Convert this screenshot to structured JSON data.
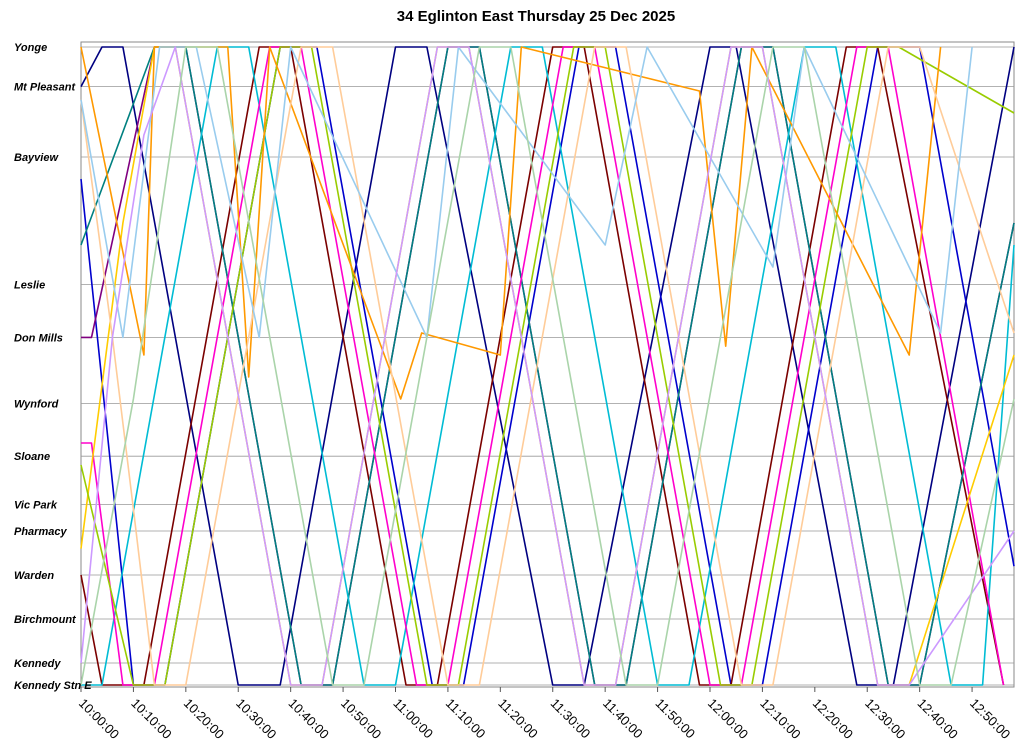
{
  "chart_data": {
    "type": "line",
    "title": "34 Eglinton East Thursday 25 Dec 2025",
    "xlabel": "",
    "ylabel": "",
    "x_ticks": [
      "10:00:00",
      "10:10:00",
      "10:20:00",
      "10:30:00",
      "10:40:00",
      "10:50:00",
      "11:00:00",
      "11:10:00",
      "11:20:00",
      "11:30:00",
      "11:40:00",
      "11:50:00",
      "12:00:00",
      "12:10:00",
      "12:20:00",
      "12:30:00",
      "12:40:00",
      "12:50:00"
    ],
    "xlim": [
      "10:00:00",
      "12:58:00"
    ],
    "stops": [
      {
        "name": "Yonge",
        "pos": 0
      },
      {
        "name": "Mt Pleasant",
        "pos": 0.9
      },
      {
        "name": "Bayview",
        "pos": 2.5
      },
      {
        "name": "Leslie",
        "pos": 5.4
      },
      {
        "name": "Don Mills",
        "pos": 6.6
      },
      {
        "name": "Wynford",
        "pos": 8.1
      },
      {
        "name": "Sloane",
        "pos": 9.3
      },
      {
        "name": "Vic Park",
        "pos": 10.4
      },
      {
        "name": "Pharmacy",
        "pos": 11.0
      },
      {
        "name": "Warden",
        "pos": 12.0
      },
      {
        "name": "Birchmount",
        "pos": 13.0
      },
      {
        "name": "Kennedy",
        "pos": 14.0
      },
      {
        "name": "Kennedy Stn E",
        "pos": 14.5
      }
    ],
    "grid": true,
    "legend": "none",
    "series": [
      {
        "color": "#000080",
        "points": [
          [
            "10:00",
            0.9
          ],
          [
            "10:04",
            0
          ],
          [
            "10:08",
            0
          ],
          [
            "10:30",
            14.5
          ],
          [
            "10:38",
            14.5
          ],
          [
            "11:00",
            0
          ],
          [
            "11:06",
            0
          ],
          [
            "11:30",
            14.5
          ],
          [
            "11:36",
            14.5
          ],
          [
            "12:00",
            0
          ],
          [
            "12:05",
            0
          ],
          [
            "12:28",
            14.5
          ],
          [
            "12:35",
            14.5
          ],
          [
            "12:58",
            0
          ]
        ]
      },
      {
        "color": "#0000cd",
        "points": [
          [
            "10:00",
            3.0
          ],
          [
            "10:10",
            14.5
          ],
          [
            "10:16",
            14.5
          ],
          [
            "10:38",
            0
          ],
          [
            "10:45",
            0
          ],
          [
            "11:07",
            14.5
          ],
          [
            "11:13",
            14.5
          ],
          [
            "11:35",
            0
          ],
          [
            "11:42",
            0
          ],
          [
            "12:04",
            14.5
          ],
          [
            "12:10",
            14.5
          ],
          [
            "12:32",
            0
          ],
          [
            "12:40",
            0
          ],
          [
            "12:58",
            11.8
          ]
        ]
      },
      {
        "color": "#7b0000",
        "points": [
          [
            "10:00",
            12.0
          ],
          [
            "10:04",
            14.5
          ],
          [
            "10:12",
            14.5
          ],
          [
            "10:34",
            0
          ],
          [
            "10:40",
            0
          ],
          [
            "11:02",
            14.5
          ],
          [
            "11:08",
            14.5
          ],
          [
            "11:30",
            0
          ],
          [
            "11:36",
            0
          ],
          [
            "11:58",
            14.5
          ],
          [
            "12:04",
            14.5
          ],
          [
            "12:26",
            0
          ],
          [
            "12:32",
            0
          ],
          [
            "12:56",
            14.5
          ]
        ]
      },
      {
        "color": "#800080",
        "points": [
          [
            "10:00",
            6.6
          ],
          [
            "10:02",
            6.6
          ],
          [
            "10:14",
            0
          ],
          [
            "10:20",
            0
          ],
          [
            "10:42",
            14.5
          ],
          [
            "10:48",
            14.5
          ],
          [
            "11:10",
            0
          ],
          [
            "11:16",
            0
          ],
          [
            "11:38",
            14.5
          ],
          [
            "11:44",
            14.5
          ],
          [
            "12:06",
            0
          ],
          [
            "12:12",
            0
          ],
          [
            "12:34",
            14.5
          ],
          [
            "12:40",
            14.5
          ],
          [
            "12:58",
            4.0
          ]
        ]
      },
      {
        "color": "#008080",
        "points": [
          [
            "10:00",
            4.5
          ],
          [
            "10:14",
            0
          ],
          [
            "10:20",
            0
          ],
          [
            "10:42",
            14.5
          ],
          [
            "10:48",
            14.5
          ],
          [
            "11:10",
            0
          ],
          [
            "11:16",
            0
          ],
          [
            "11:38",
            14.5
          ],
          [
            "11:44",
            14.5
          ],
          [
            "12:06",
            0
          ],
          [
            "12:12",
            0
          ],
          [
            "12:34",
            14.5
          ],
          [
            "12:40",
            14.5
          ],
          [
            "12:58",
            4.0
          ]
        ]
      },
      {
        "color": "#00bcd4",
        "points": [
          [
            "10:00",
            14.5
          ],
          [
            "10:04",
            14.5
          ],
          [
            "10:26",
            0
          ],
          [
            "10:32",
            0
          ],
          [
            "10:54",
            14.5
          ],
          [
            "11:00",
            14.5
          ],
          [
            "11:22",
            0
          ],
          [
            "11:28",
            0
          ],
          [
            "11:50",
            14.5
          ],
          [
            "11:56",
            14.5
          ],
          [
            "12:18",
            0
          ],
          [
            "12:24",
            0
          ],
          [
            "12:46",
            14.5
          ],
          [
            "12:52",
            14.5
          ],
          [
            "12:58",
            4.5
          ]
        ]
      },
      {
        "color": "#ff00cc",
        "points": [
          [
            "10:00",
            9.0
          ],
          [
            "10:02",
            9.0
          ],
          [
            "10:08",
            14.5
          ],
          [
            "10:14",
            14.5
          ],
          [
            "10:36",
            0
          ],
          [
            "10:42",
            0
          ],
          [
            "11:04",
            14.5
          ],
          [
            "11:10",
            14.5
          ],
          [
            "11:32",
            0
          ],
          [
            "11:38",
            0
          ],
          [
            "12:00",
            14.5
          ],
          [
            "12:06",
            14.5
          ],
          [
            "12:28",
            0
          ],
          [
            "12:34",
            0
          ],
          [
            "12:56",
            14.5
          ]
        ]
      },
      {
        "color": "#ffcc00",
        "points": [
          [
            "10:00",
            11.4
          ],
          [
            "10:08",
            4.0
          ],
          [
            "10:14",
            0
          ],
          [
            "10:18",
            0
          ],
          [
            "10:40",
            14.5
          ],
          [
            "10:46",
            14.5
          ],
          [
            "11:08",
            0
          ],
          [
            "11:14",
            0
          ],
          [
            "11:36",
            14.5
          ],
          [
            "11:42",
            14.5
          ],
          [
            "12:04",
            0
          ],
          [
            "12:10",
            0
          ],
          [
            "12:32",
            14.5
          ],
          [
            "12:38",
            14.5
          ],
          [
            "12:58",
            7.0
          ]
        ]
      },
      {
        "color": "#99cc00",
        "points": [
          [
            "10:00",
            9.5
          ],
          [
            "10:10",
            14.5
          ],
          [
            "10:16",
            14.5
          ],
          [
            "10:38",
            0
          ],
          [
            "10:44",
            0
          ],
          [
            "11:06",
            14.5
          ],
          [
            "11:12",
            14.5
          ],
          [
            "11:34",
            0
          ],
          [
            "11:40",
            0
          ],
          [
            "12:02",
            14.5
          ],
          [
            "12:08",
            14.5
          ],
          [
            "12:30",
            0
          ],
          [
            "12:36",
            0
          ],
          [
            "12:58",
            1.5
          ]
        ]
      },
      {
        "color": "#ff9900",
        "points": [
          [
            "10:00",
            0
          ],
          [
            "10:12",
            7.0
          ],
          [
            "10:14",
            0
          ],
          [
            "10:28",
            0
          ],
          [
            "10:32",
            7.5
          ],
          [
            "10:36",
            0
          ],
          [
            "11:01",
            8.0
          ],
          [
            "11:05",
            6.5
          ],
          [
            "11:20",
            7.0
          ],
          [
            "11:24",
            0
          ],
          [
            "11:58",
            1.0
          ],
          [
            "12:03",
            6.8
          ],
          [
            "12:08",
            0
          ],
          [
            "12:38",
            7.0
          ],
          [
            "12:44",
            0
          ]
        ]
      },
      {
        "color": "#ffcc99",
        "points": [
          [
            "10:00",
            1.2
          ],
          [
            "10:06",
            6.6
          ],
          [
            "10:10",
            10.5
          ],
          [
            "10:14",
            14.5
          ],
          [
            "10:20",
            14.5
          ],
          [
            "10:42",
            0
          ],
          [
            "10:48",
            0
          ],
          [
            "11:10",
            14.5
          ],
          [
            "11:16",
            14.5
          ],
          [
            "11:38",
            0
          ],
          [
            "11:44",
            0
          ],
          [
            "12:06",
            14.5
          ],
          [
            "12:12",
            14.5
          ],
          [
            "12:34",
            0
          ],
          [
            "12:40",
            0
          ],
          [
            "12:58",
            6.5
          ]
        ]
      },
      {
        "color": "#99ccee",
        "points": [
          [
            "10:00",
            1.2
          ],
          [
            "10:08",
            6.6
          ],
          [
            "10:15",
            0
          ],
          [
            "10:22",
            0
          ],
          [
            "10:34",
            6.6
          ],
          [
            "10:40",
            0
          ],
          [
            "11:06",
            6.6
          ],
          [
            "11:12",
            0
          ],
          [
            "11:40",
            4.5
          ],
          [
            "11:48",
            0
          ],
          [
            "12:12",
            5.0
          ],
          [
            "12:18",
            0
          ],
          [
            "12:44",
            6.5
          ],
          [
            "12:50",
            0
          ]
        ]
      },
      {
        "color": "#cc99ff",
        "points": [
          [
            "10:00",
            14.0
          ],
          [
            "10:06",
            6.6
          ],
          [
            "10:12",
            2.0
          ],
          [
            "10:18",
            0
          ],
          [
            "10:40",
            14.5
          ],
          [
            "10:46",
            14.5
          ],
          [
            "11:08",
            0
          ],
          [
            "11:14",
            0
          ],
          [
            "11:36",
            14.5
          ],
          [
            "11:42",
            14.5
          ],
          [
            "12:04",
            0
          ],
          [
            "12:10",
            0
          ],
          [
            "12:32",
            14.5
          ],
          [
            "12:38",
            14.5
          ],
          [
            "12:58",
            11.0
          ]
        ]
      },
      {
        "color": "#aad4aa",
        "points": [
          [
            "10:00",
            14.5
          ],
          [
            "10:10",
            8.0
          ],
          [
            "10:20",
            0
          ],
          [
            "10:26",
            0
          ],
          [
            "10:48",
            14.5
          ],
          [
            "10:54",
            14.5
          ],
          [
            "11:16",
            0
          ],
          [
            "11:22",
            0
          ],
          [
            "11:44",
            14.5
          ],
          [
            "11:50",
            14.5
          ],
          [
            "12:12",
            0
          ],
          [
            "12:18",
            0
          ],
          [
            "12:40",
            14.5
          ],
          [
            "12:46",
            14.5
          ],
          [
            "12:58",
            8.0
          ]
        ]
      }
    ]
  }
}
